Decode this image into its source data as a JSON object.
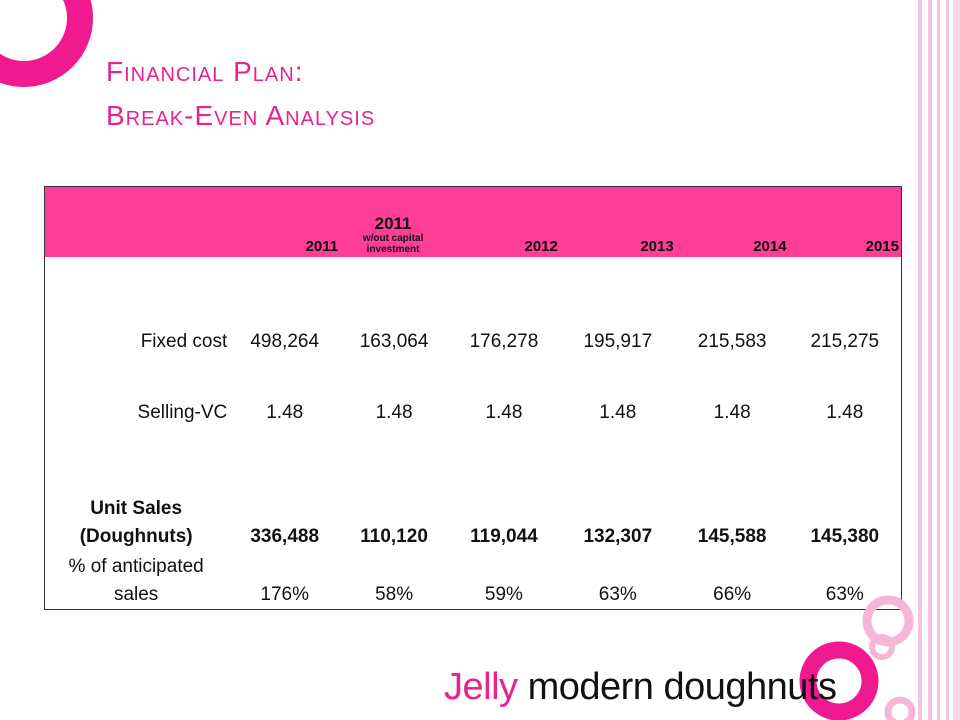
{
  "title": {
    "line1": "Financial Plan:",
    "line2": "Break-Even Analysis"
  },
  "table": {
    "header": {
      "c1": "2011",
      "c2_year": "2011",
      "c2_sub": "w/out capital investment",
      "c3": "2012",
      "c4": "2013",
      "c5": "2014",
      "c6": "2015"
    },
    "rows": [
      {
        "label": "Fixed cost",
        "values": [
          "498,264",
          "163,064",
          "176,278",
          "195,917",
          "215,583",
          "215,275"
        ]
      },
      {
        "label": "Selling-VC",
        "values": [
          "1.48",
          "1.48",
          "1.48",
          "1.48",
          "1.48",
          "1.48"
        ]
      },
      {
        "label_line1": "Unit Sales",
        "label_line2": "(Doughnuts)",
        "values": [
          "336,488",
          "110,120",
          "119,044",
          "132,307",
          "145,588",
          "145,380"
        ]
      },
      {
        "label_line1": "% of anticipated",
        "label_line2": "sales",
        "values": [
          "176%",
          "58%",
          "59%",
          "63%",
          "66%",
          "63%"
        ]
      }
    ]
  },
  "logo": {
    "word1": "Jelly",
    "word2": " modern doughnuts"
  },
  "colors": {
    "accent": "#e8238c",
    "header_fill": "#ff3e97",
    "stripe_light": "#f6cfe4"
  }
}
